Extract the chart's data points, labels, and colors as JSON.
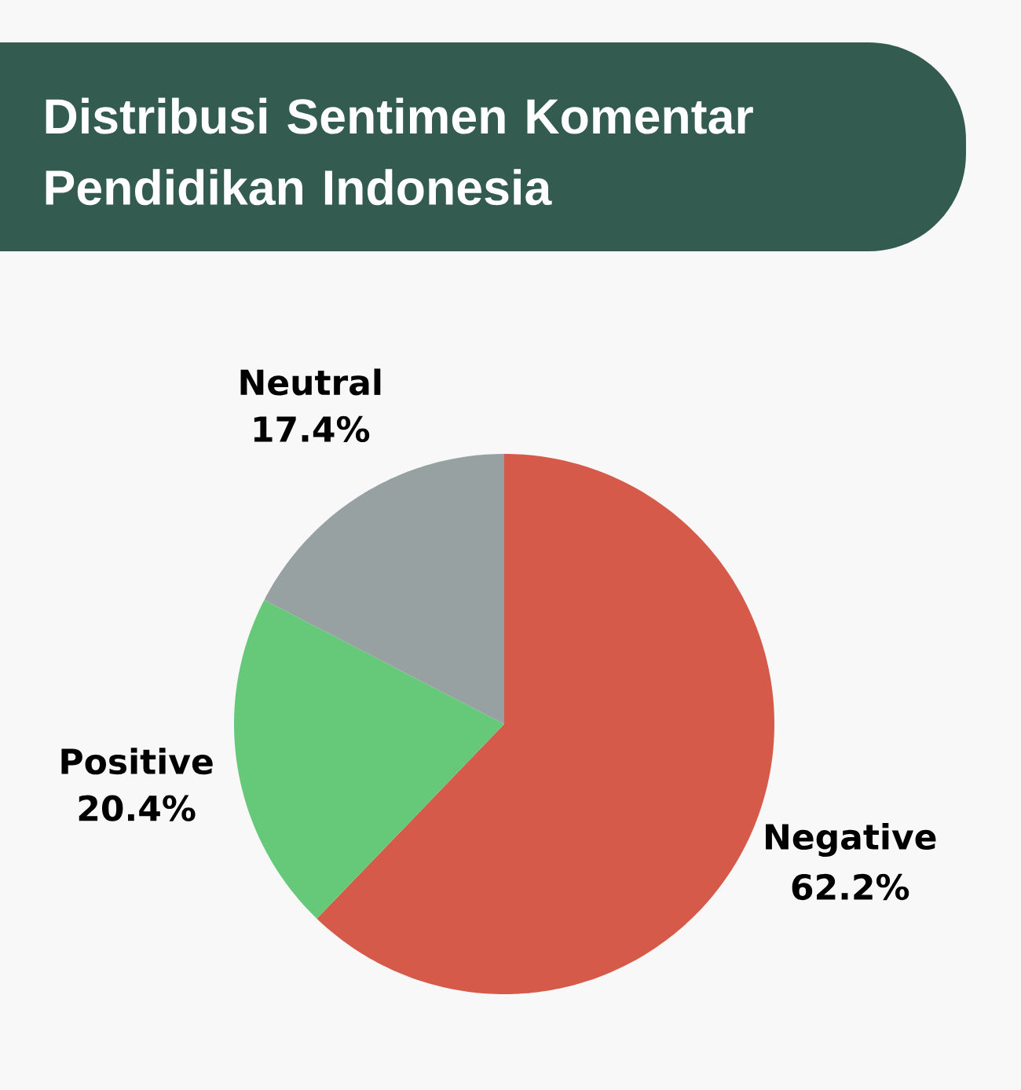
{
  "chart_data": {
    "type": "pie",
    "title": "Distribusi Sentimen Komentar Pendidikan Indonesia",
    "categories": [
      "Negative",
      "Positive",
      "Neutral"
    ],
    "values": [
      62.2,
      20.4,
      17.4
    ],
    "colors": [
      "#d65a4a",
      "#66c97a",
      "#98a1a2"
    ],
    "value_labels": [
      "62.2%",
      "20.4%",
      "17.4%"
    ]
  }
}
